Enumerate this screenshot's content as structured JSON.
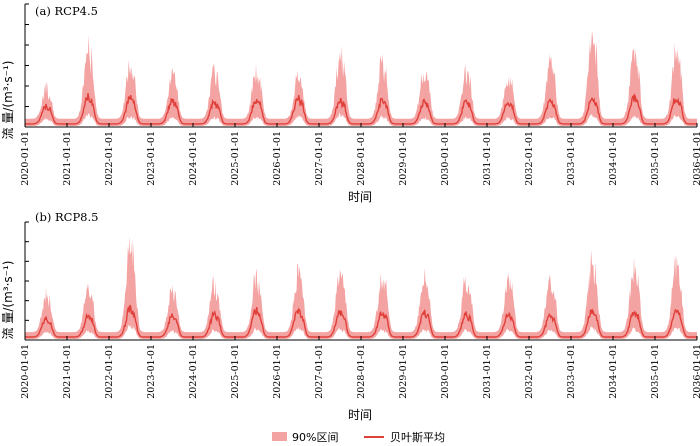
{
  "chart_data": [
    {
      "type": "area",
      "title": "(a) RCP4.5",
      "xlabel": "时间",
      "ylabel": "流 量/(m³·s⁻¹)",
      "x_ticks": [
        "2020-01-01",
        "2021-01-01",
        "2022-01-01",
        "2023-01-01",
        "2024-01-01",
        "2025-01-01",
        "2026-01-01",
        "2027-01-01",
        "2028-01-01",
        "2029-01-01",
        "2030-01-01",
        "2031-01-01",
        "2032-01-01",
        "2033-01-01",
        "2034-01-01",
        "2035-01-01",
        "2036-01-01"
      ],
      "ylim": [
        0,
        120
      ],
      "y_tick_labels_shown": false,
      "series": [
        {
          "name": "90%区间",
          "color": "#f4a3a3",
          "kind": "band",
          "annual_peaks_upper": [
            38,
            78,
            58,
            52,
            52,
            54,
            48,
            70,
            63,
            55,
            52,
            48,
            60,
            82,
            70,
            72
          ],
          "annual_peaks_lower": [
            8,
            12,
            10,
            9,
            9,
            10,
            10,
            12,
            10,
            9,
            9,
            9,
            10,
            11,
            10,
            11
          ],
          "base_upper": 8,
          "base_lower": 1
        },
        {
          "name": "贝叶斯平均",
          "color": "#e0403a",
          "kind": "line",
          "annual_peaks": [
            20,
            30,
            28,
            26,
            24,
            26,
            28,
            26,
            26,
            24,
            24,
            24,
            26,
            28,
            28,
            28
          ],
          "base": 3
        }
      ]
    },
    {
      "type": "area",
      "title": "(b) RCP8.5",
      "xlabel": "时间",
      "ylabel": "流 量/(m³·s⁻¹)",
      "x_ticks": [
        "2020-01-01",
        "2021-01-01",
        "2022-01-01",
        "2023-01-01",
        "2024-01-01",
        "2025-01-01",
        "2026-01-01",
        "2027-01-01",
        "2028-01-01",
        "2029-01-01",
        "2030-01-01",
        "2031-01-01",
        "2032-01-01",
        "2033-01-01",
        "2034-01-01",
        "2035-01-01",
        "2036-01-01"
      ],
      "ylim": [
        0,
        120
      ],
      "y_tick_labels_shown": false,
      "series": [
        {
          "name": "90%区间",
          "color": "#f4a3a3",
          "kind": "band",
          "annual_peaks_upper": [
            45,
            52,
            98,
            50,
            56,
            64,
            68,
            68,
            62,
            64,
            62,
            60,
            62,
            76,
            70,
            74
          ],
          "annual_peaks_lower": [
            8,
            9,
            14,
            9,
            10,
            11,
            12,
            11,
            10,
            11,
            10,
            10,
            10,
            12,
            11,
            12
          ],
          "base_upper": 8,
          "base_lower": 1
        },
        {
          "name": "贝叶斯平均",
          "color": "#e0403a",
          "kind": "line",
          "annual_peaks": [
            22,
            24,
            32,
            24,
            26,
            30,
            30,
            28,
            28,
            28,
            26,
            26,
            26,
            30,
            28,
            30
          ],
          "base": 3
        }
      ]
    }
  ],
  "legend": {
    "position": "bottom-right",
    "items": [
      {
        "label": "90%区间",
        "color": "#f4a3a3",
        "kind": "patch"
      },
      {
        "label": "贝叶斯平均",
        "color": "#e0403a",
        "kind": "line"
      }
    ]
  }
}
